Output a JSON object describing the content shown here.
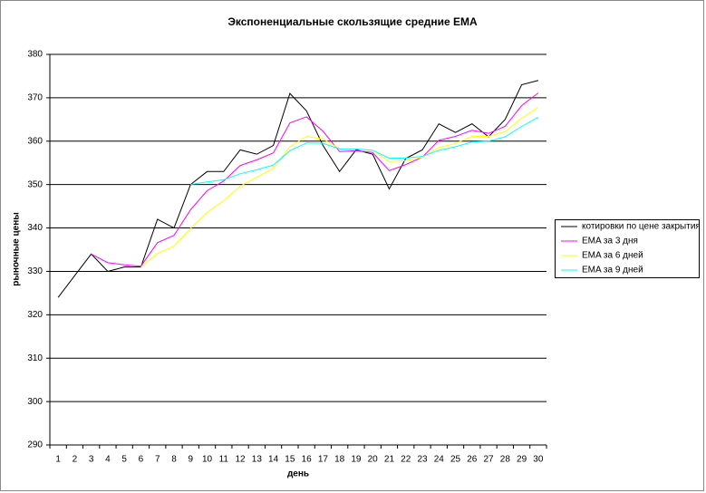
{
  "chart_data": {
    "type": "line",
    "title": "Экспоненциальные скользящие средние EMA",
    "xlabel": "день",
    "ylabel": "рыночные цены",
    "categories": [
      "1",
      "2",
      "3",
      "4",
      "5",
      "6",
      "7",
      "8",
      "9",
      "10",
      "11",
      "12",
      "13",
      "14",
      "15",
      "16",
      "17",
      "18",
      "19",
      "20",
      "21",
      "22",
      "23",
      "24",
      "25",
      "26",
      "27",
      "28",
      "29",
      "30"
    ],
    "ylim": [
      290,
      380
    ],
    "yticks": [
      290,
      300,
      310,
      320,
      330,
      340,
      350,
      360,
      370,
      380
    ],
    "grid": true,
    "legend": "right",
    "series": [
      {
        "name": "котировки по цене закрытия",
        "color": "#000000",
        "values": [
          324,
          329,
          334,
          330,
          331,
          331,
          342,
          340,
          350,
          353,
          353,
          358,
          357,
          359,
          371,
          367,
          359,
          353,
          358,
          357,
          349,
          356,
          358,
          364,
          362,
          364,
          361,
          365,
          373,
          374
        ]
      },
      {
        "name": "EMA за 3 дня",
        "color": "#ff00ff",
        "values": [
          null,
          null,
          334,
          332,
          331.5,
          331.2,
          336.6,
          338.3,
          344.2,
          348.6,
          350.8,
          354.4,
          355.7,
          357.3,
          364.2,
          365.6,
          362.3,
          357.6,
          357.8,
          357.4,
          353.2,
          354.6,
          356.3,
          360.2,
          361.1,
          362.5,
          361.8,
          363.4,
          368.2,
          371.1
        ]
      },
      {
        "name": "EMA за 6 дней",
        "color": "#ffff00",
        "values": [
          null,
          null,
          null,
          null,
          null,
          331,
          334.1,
          335.8,
          339.9,
          343.6,
          346.3,
          349.6,
          351.7,
          353.8,
          358.7,
          361.1,
          360.5,
          358.3,
          358.2,
          357.9,
          355.3,
          355.5,
          356.3,
          358.5,
          359.5,
          361.1,
          361.1,
          362.2,
          365.3,
          367.8
        ]
      },
      {
        "name": "EMA за 9 дней",
        "color": "#00ffff",
        "values": [
          null,
          null,
          null,
          null,
          null,
          null,
          null,
          null,
          350,
          350.6,
          351.1,
          352.5,
          353.4,
          354.5,
          357.8,
          359.6,
          359.5,
          358.2,
          358.2,
          357.9,
          356.1,
          356.1,
          356.5,
          357.9,
          358.7,
          359.8,
          360,
          361,
          363.4,
          365.5
        ]
      }
    ]
  }
}
